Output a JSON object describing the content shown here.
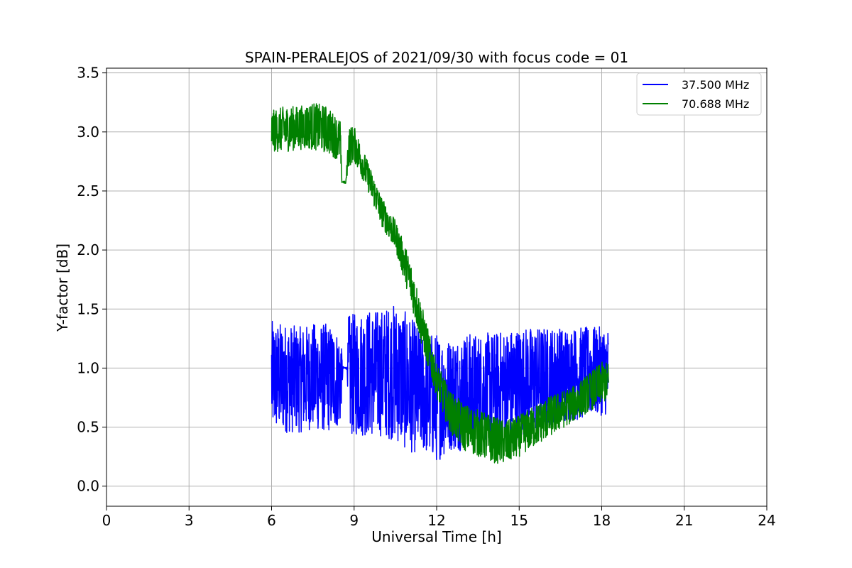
{
  "chart_data": {
    "type": "line",
    "title": "SPAIN-PERALEJOS of 2021/09/30 with focus code = 01",
    "xlabel": "Universal Time [h]",
    "ylabel": "Y-factor [dB]",
    "xlim": [
      0,
      24
    ],
    "ylim": [
      -0.17,
      3.54
    ],
    "xticks": [
      "0",
      "3",
      "6",
      "9",
      "12",
      "15",
      "18",
      "21",
      "24"
    ],
    "yticks": [
      "0.0",
      "0.5",
      "1.0",
      "1.5",
      "2.0",
      "2.5",
      "3.0",
      "3.5"
    ],
    "grid": true,
    "legend_position": "top-right",
    "series": [
      {
        "name": "37.500 MHz",
        "color": "#0000ff",
        "band": [
          {
            "x": 6.0,
            "lo": 0.45,
            "hi": 1.4
          },
          {
            "x": 6.5,
            "lo": 0.45,
            "hi": 1.38
          },
          {
            "x": 7.0,
            "lo": 0.45,
            "hi": 1.35
          },
          {
            "x": 7.5,
            "lo": 0.48,
            "hi": 1.38
          },
          {
            "x": 8.0,
            "lo": 0.45,
            "hi": 1.38
          },
          {
            "x": 8.5,
            "lo": 0.5,
            "hi": 1.3
          },
          {
            "x": 8.6,
            "lo": 0.99,
            "hi": 1.01
          },
          {
            "x": 8.75,
            "lo": 0.99,
            "hi": 1.01
          },
          {
            "x": 8.8,
            "lo": 0.42,
            "hi": 1.45
          },
          {
            "x": 9.5,
            "lo": 0.42,
            "hi": 1.5
          },
          {
            "x": 10.0,
            "lo": 0.42,
            "hi": 1.5
          },
          {
            "x": 10.5,
            "lo": 0.38,
            "hi": 1.55
          },
          {
            "x": 11.0,
            "lo": 0.28,
            "hi": 1.45
          },
          {
            "x": 11.5,
            "lo": 0.28,
            "hi": 1.3
          },
          {
            "x": 12.0,
            "lo": 0.2,
            "hi": 1.3
          },
          {
            "x": 12.5,
            "lo": 0.3,
            "hi": 1.25
          },
          {
            "x": 13.0,
            "lo": 0.3,
            "hi": 1.3
          },
          {
            "x": 14.0,
            "lo": 0.35,
            "hi": 1.3
          },
          {
            "x": 15.0,
            "lo": 0.4,
            "hi": 1.35
          },
          {
            "x": 16.0,
            "lo": 0.5,
            "hi": 1.35
          },
          {
            "x": 17.0,
            "lo": 0.55,
            "hi": 1.35
          },
          {
            "x": 18.0,
            "lo": 0.6,
            "hi": 1.35
          },
          {
            "x": 18.25,
            "lo": 0.6,
            "hi": 1.35
          }
        ]
      },
      {
        "name": "70.688 MHz",
        "color": "#008000",
        "band": [
          {
            "x": 6.0,
            "lo": 2.83,
            "hi": 3.18
          },
          {
            "x": 6.5,
            "lo": 2.83,
            "hi": 3.22
          },
          {
            "x": 7.0,
            "lo": 2.85,
            "hi": 3.22
          },
          {
            "x": 7.5,
            "lo": 2.85,
            "hi": 3.25
          },
          {
            "x": 8.0,
            "lo": 2.82,
            "hi": 3.22
          },
          {
            "x": 8.5,
            "lo": 2.75,
            "hi": 3.1
          },
          {
            "x": 8.55,
            "lo": 2.57,
            "hi": 2.59
          },
          {
            "x": 8.7,
            "lo": 2.56,
            "hi": 2.58
          },
          {
            "x": 8.8,
            "lo": 2.7,
            "hi": 3.05
          },
          {
            "x": 9.0,
            "lo": 2.75,
            "hi": 3.05
          },
          {
            "x": 9.5,
            "lo": 2.5,
            "hi": 2.75
          },
          {
            "x": 10.0,
            "lo": 2.2,
            "hi": 2.45
          },
          {
            "x": 10.5,
            "lo": 2.0,
            "hi": 2.25
          },
          {
            "x": 11.0,
            "lo": 1.6,
            "hi": 1.95
          },
          {
            "x": 11.5,
            "lo": 1.15,
            "hi": 1.5
          },
          {
            "x": 12.0,
            "lo": 0.75,
            "hi": 1.05
          },
          {
            "x": 12.5,
            "lo": 0.45,
            "hi": 0.8
          },
          {
            "x": 13.0,
            "lo": 0.3,
            "hi": 0.7
          },
          {
            "x": 14.0,
            "lo": 0.2,
            "hi": 0.6
          },
          {
            "x": 14.5,
            "lo": 0.18,
            "hi": 0.55
          },
          {
            "x": 15.0,
            "lo": 0.25,
            "hi": 0.6
          },
          {
            "x": 16.0,
            "lo": 0.4,
            "hi": 0.75
          },
          {
            "x": 17.0,
            "lo": 0.55,
            "hi": 0.85
          },
          {
            "x": 18.0,
            "lo": 0.7,
            "hi": 1.05
          },
          {
            "x": 18.25,
            "lo": 0.72,
            "hi": 1.05
          }
        ]
      }
    ]
  }
}
